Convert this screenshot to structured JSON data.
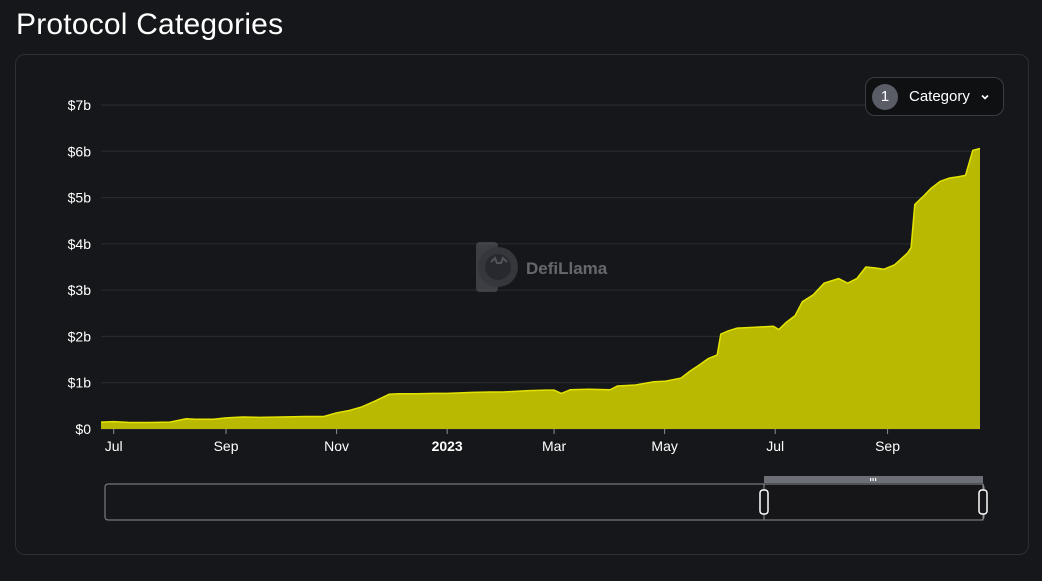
{
  "header": {
    "title": "Protocol Categories"
  },
  "controls": {
    "category_count": "1",
    "category_label": "Category",
    "chevron": "chevron-down-icon"
  },
  "watermark": {
    "text": "DefiLlama",
    "logo": "llama-logo"
  },
  "colors": {
    "area_fill": "#b8b900",
    "area_stroke": "#e4e400",
    "background": "#16171a",
    "grid": "#2a2d33"
  },
  "chart_data": {
    "type": "area",
    "title": "",
    "xlabel": "",
    "ylabel": "",
    "ylim": [
      0,
      7
    ],
    "xlim": [
      "2022-06-24",
      "2023-10-22"
    ],
    "y_ticks": [
      {
        "value": 0,
        "label": "$0"
      },
      {
        "value": 1,
        "label": "$1b"
      },
      {
        "value": 2,
        "label": "$2b"
      },
      {
        "value": 3,
        "label": "$3b"
      },
      {
        "value": 4,
        "label": "$4b"
      },
      {
        "value": 5,
        "label": "$5b"
      },
      {
        "value": 6,
        "label": "$6b"
      },
      {
        "value": 7,
        "label": "$7b"
      }
    ],
    "x_ticks": [
      {
        "date": "2022-07-01",
        "label": "Jul",
        "bold": false
      },
      {
        "date": "2022-09-01",
        "label": "Sep",
        "bold": false
      },
      {
        "date": "2022-11-01",
        "label": "Nov",
        "bold": false
      },
      {
        "date": "2023-01-01",
        "label": "2023",
        "bold": true
      },
      {
        "date": "2023-03-01",
        "label": "Mar",
        "bold": false
      },
      {
        "date": "2023-05-01",
        "label": "May",
        "bold": false
      },
      {
        "date": "2023-07-01",
        "label": "Jul",
        "bold": false
      },
      {
        "date": "2023-09-01",
        "label": "Sep",
        "bold": false
      }
    ],
    "grid": true,
    "legend": "none",
    "series": [
      {
        "x": [
          "2022-06-24",
          "2022-07-01",
          "2022-07-10",
          "2022-07-20",
          "2022-08-01",
          "2022-08-10",
          "2022-08-15",
          "2022-08-25",
          "2022-09-01",
          "2022-09-10",
          "2022-09-20",
          "2022-10-01",
          "2022-10-15",
          "2022-10-25",
          "2022-11-01",
          "2022-11-08",
          "2022-11-15",
          "2022-11-22",
          "2022-11-30",
          "2022-12-05",
          "2022-12-15",
          "2022-12-25",
          "2023-01-01",
          "2023-01-15",
          "2023-01-25",
          "2023-02-01",
          "2023-02-15",
          "2023-02-25",
          "2023-03-01",
          "2023-03-05",
          "2023-03-10",
          "2023-03-20",
          "2023-04-01",
          "2023-04-05",
          "2023-04-15",
          "2023-04-25",
          "2023-05-01",
          "2023-05-10",
          "2023-05-15",
          "2023-05-20",
          "2023-05-25",
          "2023-05-30",
          "2023-06-01",
          "2023-06-05",
          "2023-06-10",
          "2023-06-20",
          "2023-06-30",
          "2023-07-03",
          "2023-07-07",
          "2023-07-12",
          "2023-07-16",
          "2023-07-22",
          "2023-07-28",
          "2023-08-01",
          "2023-08-05",
          "2023-08-10",
          "2023-08-15",
          "2023-08-20",
          "2023-08-25",
          "2023-08-30",
          "2023-09-05",
          "2023-09-12",
          "2023-09-14",
          "2023-09-16",
          "2023-09-20",
          "2023-09-25",
          "2023-09-30",
          "2023-10-05",
          "2023-10-10",
          "2023-10-14",
          "2023-10-18",
          "2023-10-22"
        ],
        "values": [
          0.15,
          0.16,
          0.14,
          0.14,
          0.15,
          0.22,
          0.21,
          0.21,
          0.24,
          0.26,
          0.25,
          0.26,
          0.27,
          0.27,
          0.35,
          0.4,
          0.48,
          0.6,
          0.75,
          0.76,
          0.76,
          0.77,
          0.77,
          0.79,
          0.8,
          0.8,
          0.83,
          0.84,
          0.84,
          0.77,
          0.85,
          0.86,
          0.85,
          0.93,
          0.95,
          1.02,
          1.03,
          1.1,
          1.25,
          1.38,
          1.52,
          1.6,
          2.05,
          2.12,
          2.18,
          2.2,
          2.22,
          2.15,
          2.3,
          2.45,
          2.75,
          2.9,
          3.15,
          3.2,
          3.25,
          3.15,
          3.25,
          3.5,
          3.48,
          3.45,
          3.55,
          3.8,
          3.92,
          4.85,
          5.0,
          5.2,
          5.35,
          5.42,
          5.45,
          5.48,
          6.02,
          6.06
        ]
      }
    ]
  }
}
